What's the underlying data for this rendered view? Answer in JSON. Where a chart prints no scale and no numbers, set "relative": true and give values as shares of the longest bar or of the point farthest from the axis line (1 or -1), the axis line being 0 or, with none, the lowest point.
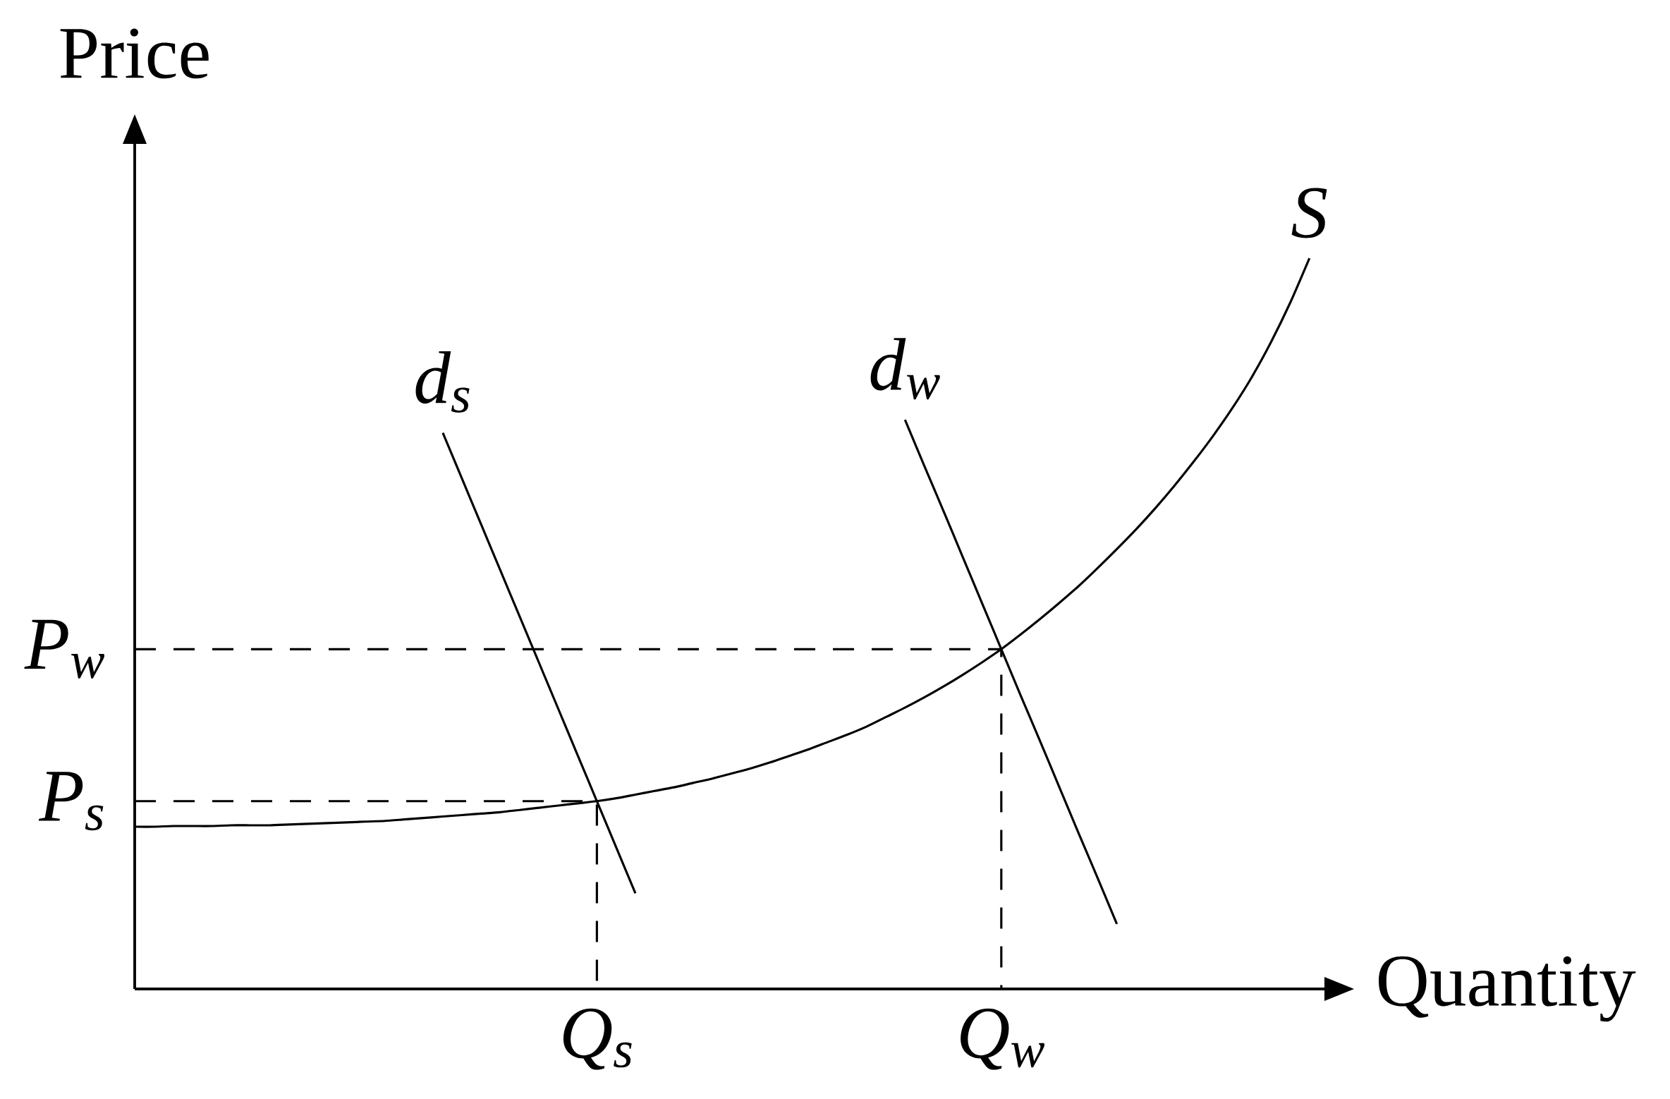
{
  "chart_data": {
    "type": "line",
    "relative": true,
    "xlabel": "Quantity",
    "ylabel": "Price",
    "categories": [
      null,
      null,
      null,
      null,
      null,
      null,
      null,
      null,
      null,
      null,
      null,
      null,
      null,
      null,
      null,
      null,
      null,
      null,
      null,
      null,
      null,
      null,
      null,
      null,
      "Q$_{s}$",
      null,
      null,
      null,
      null,
      null,
      null,
      null,
      null,
      null,
      null,
      null,
      null,
      null,
      null,
      null,
      null,
      null,
      null,
      null,
      null,
      "Q$_{w}$",
      null,
      null,
      null,
      null,
      null,
      null,
      null,
      null,
      null,
      null,
      null,
      null,
      null,
      null,
      null,
      null
    ],
    "series": [
      {
        "name": "S",
        "color": "#000000",
        "values": [
          0.222,
          0.222,
          0.223,
          0.223,
          0.223,
          0.224,
          0.224,
          0.224,
          0.225,
          0.226,
          0.227,
          0.228,
          0.229,
          0.23,
          0.232,
          0.234,
          0.236,
          0.238,
          0.24,
          0.242,
          0.245,
          0.248,
          0.251,
          0.254,
          0.257,
          0.261,
          0.266,
          0.271,
          0.276,
          0.282,
          0.288,
          0.295,
          0.302,
          0.31,
          0.319,
          0.328,
          0.338,
          0.348,
          0.359,
          0.372,
          0.385,
          0.399,
          0.414,
          0.43,
          0.447,
          0.465,
          0.485,
          0.506,
          0.528,
          0.551,
          0.576,
          0.602,
          0.629,
          0.658,
          0.689,
          0.722,
          0.757,
          0.795,
          0.837,
          0.885,
          0.939,
          1
        ]
      },
      {
        "name": "d$_{s}$",
        "color": "#000000",
        "values": [
          null,
          null,
          null,
          null,
          null,
          null,
          null,
          null,
          null,
          null,
          null,
          null,
          null,
          null,
          null,
          null,
          0.761,
          0.698,
          0.635,
          0.572,
          0.509,
          0.446,
          0.383,
          0.32,
          0.257,
          0.194,
          0.131,
          null,
          null,
          null,
          null,
          null,
          null,
          null,
          null,
          null,
          null,
          null,
          null,
          null,
          null,
          null,
          null,
          null,
          null,
          null,
          null,
          null,
          null,
          null,
          null,
          null,
          null,
          null,
          null,
          null,
          null,
          null,
          null,
          null,
          null,
          null
        ]
      },
      {
        "name": "d$_{w}$",
        "color": "#000000",
        "values": [
          null,
          null,
          null,
          null,
          null,
          null,
          null,
          null,
          null,
          null,
          null,
          null,
          null,
          null,
          null,
          null,
          null,
          null,
          null,
          null,
          null,
          null,
          null,
          null,
          null,
          null,
          null,
          null,
          null,
          null,
          null,
          null,
          null,
          null,
          null,
          null,
          null,
          null,
          null,
          null,
          0.779,
          0.716,
          0.654,
          0.591,
          0.528,
          0.465,
          0.402,
          0.34,
          0.277,
          0.214,
          0.152,
          0.089,
          null,
          null,
          null,
          null,
          null,
          null,
          null,
          null,
          null,
          null
        ]
      },
      {
        "type": "step",
        "name": "P$_{w}$",
        "color": "#000000",
        "line_style": "dashed",
        "values": [
          0.465,
          0.465,
          0.465,
          0.465,
          0.465,
          0.465,
          0.465,
          0.465,
          0.465,
          0.465,
          0.465,
          0.465,
          0.465,
          0.465,
          0.465,
          0.465,
          0.465,
          0.465,
          0.465,
          0.465,
          0.465,
          0.465,
          0.465,
          0.465,
          0.465,
          0.465,
          0.465,
          0.465,
          0.465,
          0.465,
          0.465,
          0.465,
          0.465,
          0.465,
          0.465,
          0.465,
          0.465,
          0.465,
          0.465,
          0.465,
          0.465,
          0.465,
          0.465,
          0.465,
          0.465,
          0,
          null,
          null,
          null,
          null,
          null,
          null,
          null,
          null,
          null,
          null,
          null,
          null,
          null,
          null,
          null,
          null
        ]
      },
      {
        "type": "step",
        "name": "P$_{s}$",
        "color": "#000000",
        "line_style": "dashed",
        "values": [
          0.257,
          0.257,
          0.257,
          0.257,
          0.257,
          0.257,
          0.257,
          0.257,
          0.257,
          0.257,
          0.257,
          0.257,
          0.257,
          0.257,
          0.257,
          0.257,
          0.257,
          0.257,
          0.257,
          0.257,
          0.257,
          0.257,
          0.257,
          0.257,
          0,
          null,
          null,
          null,
          null,
          null,
          null,
          null,
          null,
          null,
          null,
          null,
          null,
          null,
          null,
          null,
          null,
          null,
          null,
          null,
          null,
          null,
          null,
          null,
          null,
          null,
          null,
          null,
          null,
          null,
          null,
          null,
          null,
          null,
          null,
          null,
          null,
          null
        ]
      }
    ]
  }
}
